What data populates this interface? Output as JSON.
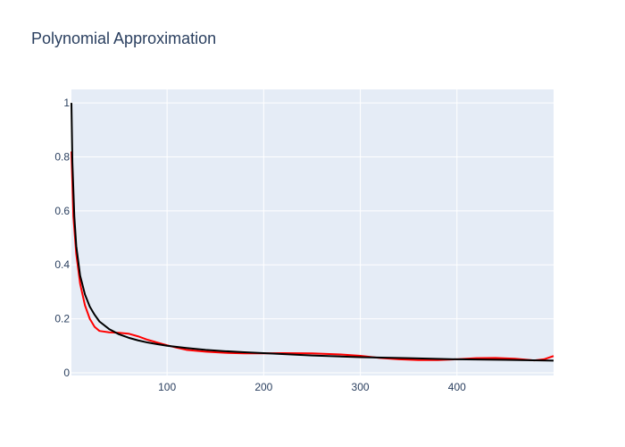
{
  "chart_data": {
    "type": "line",
    "title": "Polynomial Approximation",
    "xlabel": "",
    "ylabel": "",
    "xlim": [
      1,
      500
    ],
    "ylim": [
      -0.01,
      1.05
    ],
    "grid": true,
    "x_ticks": [
      100,
      200,
      300,
      400
    ],
    "y_ticks": [
      0,
      0.2,
      0.4,
      0.6,
      0.8,
      1
    ],
    "x_tick_labels": [
      "100",
      "200",
      "300",
      "400"
    ],
    "y_tick_labels": [
      "0",
      "0.2",
      "0.4",
      "0.6",
      "0.8",
      "1"
    ],
    "colors": {
      "plot_bg": "#e5ecf6",
      "grid": "#ffffff",
      "text": "#2a3f5f"
    },
    "series": [
      {
        "color": "#ff0000",
        "x": [
          1,
          3,
          6,
          10,
          15,
          20,
          25,
          30,
          40,
          50,
          60,
          70,
          80,
          90,
          100,
          110,
          120,
          140,
          160,
          180,
          200,
          220,
          250,
          280,
          300,
          320,
          340,
          360,
          380,
          400,
          420,
          440,
          460,
          480,
          490,
          500
        ],
        "y": [
          0.82,
          0.58,
          0.44,
          0.33,
          0.25,
          0.2,
          0.17,
          0.155,
          0.15,
          0.148,
          0.145,
          0.135,
          0.122,
          0.112,
          0.102,
          0.093,
          0.085,
          0.078,
          0.074,
          0.072,
          0.072,
          0.073,
          0.072,
          0.068,
          0.063,
          0.055,
          0.05,
          0.047,
          0.047,
          0.05,
          0.054,
          0.055,
          0.052,
          0.046,
          0.05,
          0.062
        ]
      },
      {
        "color": "#000000",
        "x": [
          1,
          2,
          4,
          6,
          10,
          15,
          20,
          25,
          30,
          40,
          50,
          60,
          70,
          80,
          90,
          100,
          120,
          140,
          160,
          180,
          200,
          250,
          300,
          350,
          400,
          450,
          500
        ],
        "y": [
          1.0,
          0.78,
          0.58,
          0.47,
          0.36,
          0.29,
          0.245,
          0.215,
          0.19,
          0.162,
          0.143,
          0.13,
          0.12,
          0.112,
          0.106,
          0.1,
          0.092,
          0.085,
          0.08,
          0.076,
          0.073,
          0.064,
          0.058,
          0.054,
          0.05,
          0.048,
          0.045
        ]
      }
    ]
  }
}
